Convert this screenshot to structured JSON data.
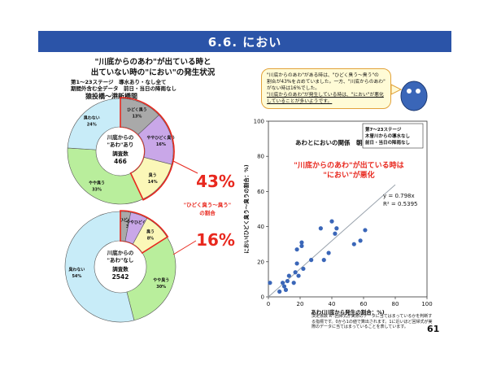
{
  "header": {
    "title": "6.6. におい"
  },
  "left": {
    "title_line1": "\"川底からのあわ\"が出ている時と",
    "title_line2": "出ていない時の\"におい\"の発生状況",
    "subtitle_line1": "第1～23ステージ　導水あり・なし全て",
    "subtitle_line2": "期間外含む全データ　前日・当日の降雨なし",
    "section": "猿投橋～港新橋間"
  },
  "pie_top": {
    "center_line1": "川底からの",
    "center_line2": "\"あわ\"あり",
    "center_line3": "調査数",
    "count": "466",
    "slices": [
      {
        "label": "ひどく臭う",
        "pct": "13%",
        "value": 13,
        "color": "#a9a9a9"
      },
      {
        "label": "ややひどく臭う",
        "pct": "16%",
        "value": 16,
        "color": "#c9a7e8"
      },
      {
        "label": "臭う",
        "pct": "14%",
        "value": 14,
        "color": "#fbf7b8"
      },
      {
        "label": "やや臭う",
        "pct": "33%",
        "value": 33,
        "color": "#b9ee9c"
      },
      {
        "label": "臭わない",
        "pct": "24%",
        "value": 24,
        "color": "#c8ecf8"
      }
    ]
  },
  "pie_bottom": {
    "center_line1": "川底からの",
    "center_line2": "\"あわ\"なし",
    "center_line3": "調査数",
    "count": "2542",
    "slices": [
      {
        "label": "ひどく臭う",
        "pct": "3%",
        "value": 3,
        "color": "#a9a9a9"
      },
      {
        "label": "ややひどく臭う",
        "pct": "",
        "value": 5,
        "color": "#c9a7e8"
      },
      {
        "label": "臭う",
        "pct": "8%",
        "value": 8,
        "color": "#fbf7b8"
      },
      {
        "label": "やや臭う",
        "pct": "30%",
        "value": 30,
        "color": "#b9ee9c"
      },
      {
        "label": "臭わない",
        "pct": "54%",
        "value": 54,
        "color": "#c8ecf8"
      }
    ]
  },
  "callouts": {
    "pct_top": "43%",
    "label_line1": "\"ひどく臭う～臭う\"",
    "label_line2": "の割合",
    "pct_bottom": "16%",
    "accent": "#e8281e"
  },
  "bubble": {
    "line1": "\"川底からのあわ\"がある時は、\"ひどく臭う～臭う\"の",
    "line2": "割合が43%を占めていました。一方、\"川底からのあわ\"",
    "line3": "がない時は16%でした。",
    "line4": "\"川底からのあわ\"が発生している時は、\"におい\"が悪化",
    "line5": "していることが多いようです。"
  },
  "chart_data": {
    "type": "scatter",
    "title": "あわとにおいの関係　朝日橋～松重橋間",
    "xlabel": "あわ(川底から発生の割合：%)",
    "ylabel": "におい(ひどく臭う～臭うの割合：%)",
    "xlim": [
      0,
      100
    ],
    "ylim": [
      0,
      100
    ],
    "xticks": [
      0,
      20,
      40,
      60,
      80,
      100
    ],
    "yticks": [
      0,
      20,
      40,
      60,
      80,
      100
    ],
    "grid": false,
    "legend_line1": "第7～23ステージ",
    "legend_line2": "木曽川からの導水なし",
    "legend_line3": "前日・当日の降雨なし",
    "annotation_line1": "\"川底からのあわ\"が出ている時は",
    "annotation_line2": "\"におい\"が悪化",
    "equation_line1": "y = 0.798x",
    "equation_line2": "R² = 0.5395",
    "trend_slope": 0.798,
    "points": [
      {
        "x": 1,
        "y": 8
      },
      {
        "x": 7,
        "y": 3
      },
      {
        "x": 9,
        "y": 8
      },
      {
        "x": 10,
        "y": 6
      },
      {
        "x": 11,
        "y": 4
      },
      {
        "x": 12,
        "y": 9
      },
      {
        "x": 13,
        "y": 12
      },
      {
        "x": 16,
        "y": 8
      },
      {
        "x": 17,
        "y": 14
      },
      {
        "x": 18,
        "y": 19
      },
      {
        "x": 18,
        "y": 27
      },
      {
        "x": 19,
        "y": 12
      },
      {
        "x": 21,
        "y": 29
      },
      {
        "x": 21,
        "y": 31
      },
      {
        "x": 22,
        "y": 16
      },
      {
        "x": 27,
        "y": 21
      },
      {
        "x": 33,
        "y": 39
      },
      {
        "x": 35,
        "y": 21
      },
      {
        "x": 38,
        "y": 25
      },
      {
        "x": 40,
        "y": 43
      },
      {
        "x": 42,
        "y": 36
      },
      {
        "x": 43,
        "y": 39
      },
      {
        "x": 54,
        "y": 30
      },
      {
        "x": 58,
        "y": 32
      },
      {
        "x": 61,
        "y": 38
      }
    ],
    "marker_color": "#3a66b8",
    "trend_color": "#9aa3ad"
  },
  "footnote": {
    "line1": "決定係数 R²:回帰式が実際のデータに当てはまっているかを判断する指標です。0から1の値で算出されます。1に近いほど回帰式が実際のデータに当てはまっていることを表しています。"
  },
  "page_number": "61"
}
